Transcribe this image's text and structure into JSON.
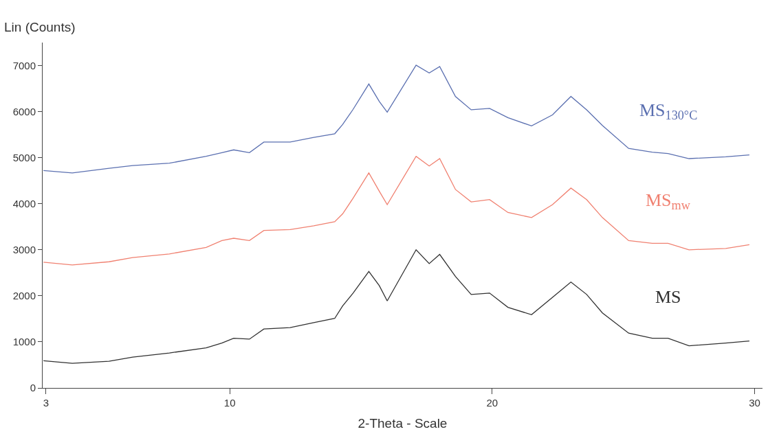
{
  "chart_data": {
    "type": "line",
    "xlabel": "2-Theta - Scale",
    "ylabel": "Lin (Counts)",
    "xlim": [
      2.87,
      30.3
    ],
    "xticks": [
      3,
      10,
      20,
      30
    ],
    "ylim": [
      0,
      7500
    ],
    "yticks": [
      0,
      1000,
      2000,
      3000,
      4000,
      5000,
      6000,
      7000
    ],
    "legend": false,
    "marker": "none",
    "line_style": "solid",
    "x": [
      2.9,
      4.0,
      5.4,
      6.3,
      7.7,
      9.1,
      9.7,
      10.15,
      10.75,
      11.3,
      12.3,
      13.2,
      14.0,
      14.3,
      14.7,
      15.3,
      15.7,
      16.0,
      17.1,
      17.6,
      18.0,
      18.6,
      19.2,
      19.9,
      20.6,
      21.5,
      22.3,
      23.0,
      23.6,
      24.2,
      25.2,
      26.1,
      26.7,
      27.5,
      28.9,
      29.8
    ],
    "series": [
      {
        "name": "MS$_{130°C}$",
        "color": "#5a6fb0",
        "values": [
          4720,
          4670,
          4770,
          4830,
          4880,
          5030,
          5110,
          5170,
          5110,
          5340,
          5340,
          5440,
          5520,
          5720,
          6050,
          6600,
          6220,
          5990,
          7010,
          6840,
          6980,
          6330,
          6040,
          6070,
          5870,
          5690,
          5930,
          6330,
          6040,
          5700,
          5200,
          5120,
          5090,
          4980,
          5020,
          5060
        ]
      },
      {
        "name": "MS$_{mw}$",
        "color": "#f08070",
        "values": [
          2730,
          2670,
          2740,
          2830,
          2910,
          3050,
          3200,
          3250,
          3200,
          3420,
          3440,
          3520,
          3610,
          3780,
          4120,
          4670,
          4270,
          3980,
          5030,
          4820,
          4980,
          4310,
          4040,
          4090,
          3810,
          3700,
          3980,
          4340,
          4090,
          3700,
          3200,
          3140,
          3140,
          3000,
          3030,
          3110
        ]
      },
      {
        "name": "MS",
        "color": "#303030",
        "values": [
          590,
          535,
          580,
          670,
          760,
          870,
          975,
          1080,
          1060,
          1280,
          1310,
          1420,
          1510,
          1780,
          2060,
          2530,
          2220,
          1890,
          3000,
          2700,
          2900,
          2420,
          2030,
          2060,
          1750,
          1590,
          1970,
          2300,
          2030,
          1630,
          1190,
          1080,
          1080,
          915,
          975,
          1020
        ]
      }
    ]
  }
}
